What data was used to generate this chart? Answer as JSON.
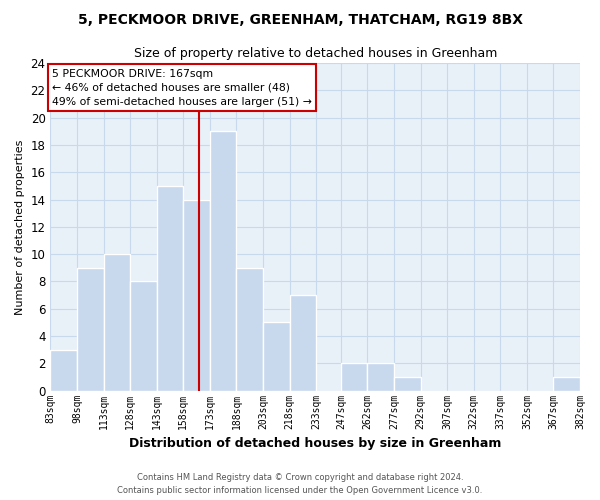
{
  "title": "5, PECKMOOR DRIVE, GREENHAM, THATCHAM, RG19 8BX",
  "subtitle": "Size of property relative to detached houses in Greenham",
  "xlabel": "Distribution of detached houses by size in Greenham",
  "ylabel": "Number of detached properties",
  "bin_edges": [
    83,
    98,
    113,
    128,
    143,
    158,
    173,
    188,
    203,
    218,
    233,
    247,
    262,
    277,
    292,
    307,
    322,
    337,
    352,
    367,
    382
  ],
  "bin_labels": [
    "83sqm",
    "98sqm",
    "113sqm",
    "128sqm",
    "143sqm",
    "158sqm",
    "173sqm",
    "188sqm",
    "203sqm",
    "218sqm",
    "233sqm",
    "247sqm",
    "262sqm",
    "277sqm",
    "292sqm",
    "307sqm",
    "322sqm",
    "337sqm",
    "352sqm",
    "367sqm",
    "382sqm"
  ],
  "counts": [
    3,
    9,
    10,
    8,
    15,
    14,
    19,
    9,
    5,
    7,
    0,
    2,
    2,
    1,
    0,
    0,
    0,
    0,
    0,
    1
  ],
  "bar_color": "#c8d8ed",
  "bar_edge_color": "#ffffff",
  "ref_line_x": 167,
  "ref_line_color": "#cc0000",
  "annotation_line1": "5 PECKMOOR DRIVE: 167sqm",
  "annotation_line2": "← 46% of detached houses are smaller (48)",
  "annotation_line3": "49% of semi-detached houses are larger (51) →",
  "annotation_box_color": "#ffffff",
  "annotation_box_edge": "#cc0000",
  "ylim": [
    0,
    24
  ],
  "yticks": [
    0,
    2,
    4,
    6,
    8,
    10,
    12,
    14,
    16,
    18,
    20,
    22,
    24
  ],
  "grid_color": "#c8d8ed",
  "plot_bg_color": "#e8f0f8",
  "fig_bg_color": "#ffffff",
  "footer_line1": "Contains HM Land Registry data © Crown copyright and database right 2024.",
  "footer_line2": "Contains public sector information licensed under the Open Government Licence v3.0."
}
